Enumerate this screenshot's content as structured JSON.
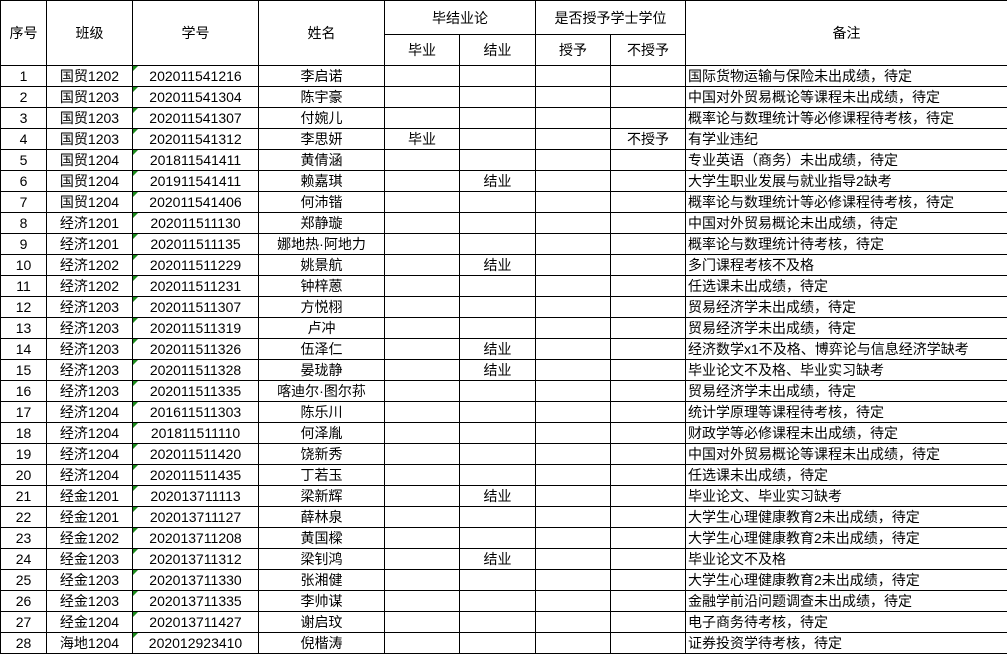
{
  "headers": {
    "index": "序号",
    "class": "班级",
    "student_id": "学号",
    "name": "姓名",
    "thesis_group": "毕结业论",
    "degree_group": "是否授予学士学位",
    "graduate": "毕业",
    "completion": "结业",
    "grant": "授予",
    "no_grant": "不授予",
    "remark": "备注"
  },
  "rows": [
    {
      "no": "1",
      "cls": "国贸1202",
      "id": "202011541216",
      "name": "李启诺",
      "grad": "",
      "comp": "",
      "grant": "",
      "nogrant": "",
      "remark": "国际货物运输与保险未出成绩，待定"
    },
    {
      "no": "2",
      "cls": "国贸1203",
      "id": "202011541304",
      "name": "陈宇豪",
      "grad": "",
      "comp": "",
      "grant": "",
      "nogrant": "",
      "remark": "中国对外贸易概论等课程未出成绩，待定"
    },
    {
      "no": "3",
      "cls": "国贸1203",
      "id": "202011541307",
      "name": "付婉儿",
      "grad": "",
      "comp": "",
      "grant": "",
      "nogrant": "",
      "remark": "概率论与数理统计等必修课程待考核，待定"
    },
    {
      "no": "4",
      "cls": "国贸1203",
      "id": "202011541312",
      "name": "李思妍",
      "grad": "毕业",
      "comp": "",
      "grant": "",
      "nogrant": "不授予",
      "remark": "有学业违纪"
    },
    {
      "no": "5",
      "cls": "国贸1204",
      "id": "201811541411",
      "name": "黄倩涵",
      "grad": "",
      "comp": "",
      "grant": "",
      "nogrant": "",
      "remark": "专业英语（商务）未出成绩，待定"
    },
    {
      "no": "6",
      "cls": "国贸1204",
      "id": "201911541411",
      "name": "赖嘉琪",
      "grad": "",
      "comp": "结业",
      "grant": "",
      "nogrant": "",
      "remark": "大学生职业发展与就业指导2缺考"
    },
    {
      "no": "7",
      "cls": "国贸1204",
      "id": "202011541406",
      "name": "何沛锴",
      "grad": "",
      "comp": "",
      "grant": "",
      "nogrant": "",
      "remark": "概率论与数理统计等必修课程待考核，待定"
    },
    {
      "no": "8",
      "cls": "经济1201",
      "id": "202011511130",
      "name": "郑静璇",
      "grad": "",
      "comp": "",
      "grant": "",
      "nogrant": "",
      "remark": "中国对外贸易概论未出成绩，待定"
    },
    {
      "no": "9",
      "cls": "经济1201",
      "id": "202011511135",
      "name": "娜地热·阿地力",
      "grad": "",
      "comp": "",
      "grant": "",
      "nogrant": "",
      "remark": "概率论与数理统计待考核，待定"
    },
    {
      "no": "10",
      "cls": "经济1202",
      "id": "202011511229",
      "name": "姚景航",
      "grad": "",
      "comp": "结业",
      "grant": "",
      "nogrant": "",
      "remark": "多门课程考核不及格"
    },
    {
      "no": "11",
      "cls": "经济1202",
      "id": "202011511231",
      "name": "钟梓蒽",
      "grad": "",
      "comp": "",
      "grant": "",
      "nogrant": "",
      "remark": "任选课未出成绩，待定"
    },
    {
      "no": "12",
      "cls": "经济1203",
      "id": "202011511307",
      "name": "方悦栩",
      "grad": "",
      "comp": "",
      "grant": "",
      "nogrant": "",
      "remark": "贸易经济学未出成绩，待定"
    },
    {
      "no": "13",
      "cls": "经济1203",
      "id": "202011511319",
      "name": "卢冲",
      "grad": "",
      "comp": "",
      "grant": "",
      "nogrant": "",
      "remark": "贸易经济学未出成绩，待定"
    },
    {
      "no": "14",
      "cls": "经济1203",
      "id": "202011511326",
      "name": "伍泽仁",
      "grad": "",
      "comp": "结业",
      "grant": "",
      "nogrant": "",
      "remark": "经济数学x1不及格、博弈论与信息经济学缺考"
    },
    {
      "no": "15",
      "cls": "经济1203",
      "id": "202011511328",
      "name": "晏珑静",
      "grad": "",
      "comp": "结业",
      "grant": "",
      "nogrant": "",
      "remark": "毕业论文不及格、毕业实习缺考"
    },
    {
      "no": "16",
      "cls": "经济1203",
      "id": "202011511335",
      "name": "喀迪尔·图尔荪",
      "grad": "",
      "comp": "",
      "grant": "",
      "nogrant": "",
      "remark": "贸易经济学未出成绩，待定"
    },
    {
      "no": "17",
      "cls": "经济1204",
      "id": "201611511303",
      "name": "陈乐川",
      "grad": "",
      "comp": "",
      "grant": "",
      "nogrant": "",
      "remark": "统计学原理等课程待考核，待定"
    },
    {
      "no": "18",
      "cls": "经济1204",
      "id": "201811511110",
      "name": "何泽胤",
      "grad": "",
      "comp": "",
      "grant": "",
      "nogrant": "",
      "remark": "财政学等必修课程未出成绩，待定"
    },
    {
      "no": "19",
      "cls": "经济1204",
      "id": "202011511420",
      "name": "饶新秀",
      "grad": "",
      "comp": "",
      "grant": "",
      "nogrant": "",
      "remark": "中国对外贸易概论等课程未出成绩，待定"
    },
    {
      "no": "20",
      "cls": "经济1204",
      "id": "202011511435",
      "name": "丁若玉",
      "grad": "",
      "comp": "",
      "grant": "",
      "nogrant": "",
      "remark": "任选课未出成绩，待定"
    },
    {
      "no": "21",
      "cls": "经金1201",
      "id": "202013711113",
      "name": "梁新辉",
      "grad": "",
      "comp": "结业",
      "grant": "",
      "nogrant": "",
      "remark": "毕业论文、毕业实习缺考"
    },
    {
      "no": "22",
      "cls": "经金1201",
      "id": "202013711127",
      "name": "薛林泉",
      "grad": "",
      "comp": "",
      "grant": "",
      "nogrant": "",
      "remark": "大学生心理健康教育2未出成绩，待定"
    },
    {
      "no": "23",
      "cls": "经金1202",
      "id": "202013711208",
      "name": "黄国樑",
      "grad": "",
      "comp": "",
      "grant": "",
      "nogrant": "",
      "remark": "大学生心理健康教育2未出成绩，待定"
    },
    {
      "no": "24",
      "cls": "经金1203",
      "id": "202013711312",
      "name": "梁钊鸿",
      "grad": "",
      "comp": "结业",
      "grant": "",
      "nogrant": "",
      "remark": "毕业论文不及格"
    },
    {
      "no": "25",
      "cls": "经金1203",
      "id": "202013711330",
      "name": "张湘健",
      "grad": "",
      "comp": "",
      "grant": "",
      "nogrant": "",
      "remark": "大学生心理健康教育2未出成绩，待定"
    },
    {
      "no": "26",
      "cls": "经金1203",
      "id": "202013711335",
      "name": "李帅谋",
      "grad": "",
      "comp": "",
      "grant": "",
      "nogrant": "",
      "remark": "金融学前沿问题调查未出成绩，待定"
    },
    {
      "no": "27",
      "cls": "经金1204",
      "id": "202013711427",
      "name": "谢启玟",
      "grad": "",
      "comp": "",
      "grant": "",
      "nogrant": "",
      "remark": "电子商务待考核，待定"
    },
    {
      "no": "28",
      "cls": "海地1204",
      "id": "202012923410",
      "name": "倪楷涛",
      "grad": "",
      "comp": "",
      "grant": "",
      "nogrant": "",
      "remark": "证券投资学待考核，待定"
    }
  ]
}
